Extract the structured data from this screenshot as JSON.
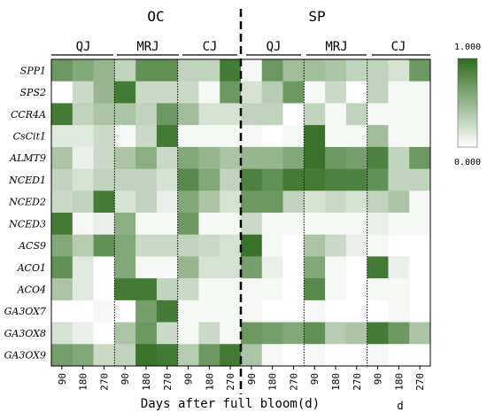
{
  "chart_data": {
    "type": "heatmap",
    "groups": [
      {
        "label": "OC",
        "subgroups": [
          "QJ",
          "MRJ",
          "CJ"
        ]
      },
      {
        "label": "SP",
        "subgroups": [
          "QJ",
          "MRJ",
          "CJ"
        ]
      }
    ],
    "rows": [
      "SPP1",
      "SPS2",
      "CCR4A",
      "CsCit1",
      "ALMT9",
      "NCED1",
      "NCED2",
      "NCED3",
      "ACS9",
      "ACO1",
      "ACO4",
      "GA3OX7",
      "GA3OX8",
      "GA3OX9"
    ],
    "column_ticks": [
      "90",
      "180",
      "270",
      "90",
      "180",
      "270",
      "90",
      "180",
      "270",
      "90",
      "180",
      "270",
      "90",
      "180",
      "270",
      "90",
      "180",
      "270"
    ],
    "xlabel": "Days after full bloom(d)",
    "unit_label": "d",
    "legend": {
      "max": "1.000",
      "min": "0.000"
    },
    "values": [
      [
        0.7,
        0.6,
        0.5,
        0.3,
        0.75,
        0.75,
        0.3,
        0.3,
        0.9,
        0.05,
        0.7,
        0.45,
        0.45,
        0.4,
        0.3,
        0.3,
        0.2,
        0.7
      ],
      [
        0.0,
        0.25,
        0.5,
        0.9,
        0.25,
        0.25,
        0.25,
        0.05,
        0.7,
        0.2,
        0.35,
        0.7,
        0.05,
        0.25,
        0.0,
        0.3,
        0.05,
        0.05
      ],
      [
        0.9,
        0.3,
        0.4,
        0.4,
        0.3,
        0.7,
        0.45,
        0.2,
        0.2,
        0.3,
        0.3,
        0.0,
        0.3,
        0.05,
        0.3,
        0.05,
        0.05,
        0.05
      ],
      [
        0.15,
        0.15,
        0.25,
        0.05,
        0.25,
        0.9,
        0.05,
        0.05,
        0.05,
        0.05,
        0.0,
        0.05,
        0.95,
        0.05,
        0.05,
        0.45,
        0.05,
        0.05
      ],
      [
        0.4,
        0.1,
        0.25,
        0.4,
        0.55,
        0.25,
        0.6,
        0.5,
        0.4,
        0.5,
        0.5,
        0.6,
        0.95,
        0.7,
        0.65,
        0.85,
        0.3,
        0.7
      ],
      [
        0.3,
        0.2,
        0.3,
        0.3,
        0.3,
        0.2,
        0.8,
        0.6,
        0.3,
        0.85,
        0.75,
        0.9,
        0.9,
        0.85,
        0.85,
        0.75,
        0.3,
        0.3
      ],
      [
        0.25,
        0.3,
        0.9,
        0.2,
        0.3,
        0.1,
        0.6,
        0.4,
        0.2,
        0.7,
        0.7,
        0.3,
        0.2,
        0.25,
        0.2,
        0.3,
        0.4,
        0.05
      ],
      [
        0.9,
        0.05,
        0.1,
        0.55,
        0.05,
        0.05,
        0.7,
        0.05,
        0.05,
        0.25,
        0.05,
        0.05,
        0.05,
        0.05,
        0.05,
        0.1,
        0.05,
        0.05
      ],
      [
        0.6,
        0.35,
        0.75,
        0.6,
        0.25,
        0.25,
        0.3,
        0.25,
        0.2,
        0.95,
        0.05,
        0.0,
        0.4,
        0.25,
        0.1,
        0.05,
        0.0,
        0.0
      ],
      [
        0.75,
        0.15,
        0.0,
        0.6,
        0.05,
        0.05,
        0.5,
        0.2,
        0.2,
        0.65,
        0.1,
        0.0,
        0.6,
        0.05,
        0.0,
        0.9,
        0.1,
        0.0
      ],
      [
        0.4,
        0.15,
        0.0,
        0.9,
        0.9,
        0.3,
        0.25,
        0.05,
        0.05,
        0.05,
        0.05,
        0.0,
        0.8,
        0.05,
        0.0,
        0.05,
        0.05,
        0.0
      ],
      [
        0.0,
        0.0,
        0.05,
        0.0,
        0.65,
        0.9,
        0.05,
        0.05,
        0.05,
        0.05,
        0.0,
        0.0,
        0.05,
        0.0,
        0.0,
        0.0,
        0.05,
        0.0
      ],
      [
        0.2,
        0.1,
        0.0,
        0.4,
        0.7,
        0.25,
        0.05,
        0.25,
        0.05,
        0.7,
        0.65,
        0.6,
        0.75,
        0.35,
        0.4,
        0.9,
        0.7,
        0.4
      ],
      [
        0.65,
        0.6,
        0.25,
        0.3,
        0.95,
        0.9,
        0.35,
        0.7,
        0.9,
        0.4,
        0.05,
        0.0,
        0.05,
        0.0,
        0.0,
        0.05,
        0.0,
        0.0
      ]
    ]
  }
}
